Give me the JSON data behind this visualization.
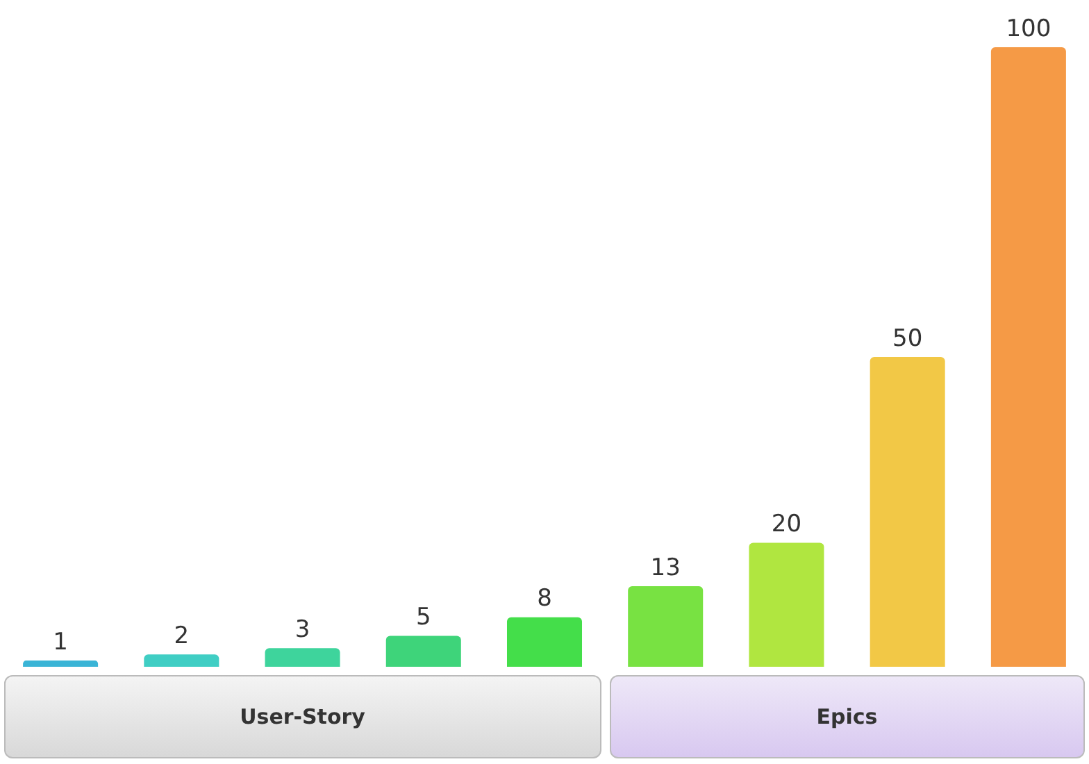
{
  "chart_data": {
    "type": "bar",
    "categories": [
      null,
      null,
      null,
      null,
      null,
      null,
      null,
      null,
      null
    ],
    "values": [
      1,
      2,
      3,
      5,
      8,
      13,
      20,
      50,
      100
    ],
    "colors": [
      "#3ab4d6",
      "#40cec4",
      "#3ed49c",
      "#3ed47a",
      "#44de4a",
      "#78e242",
      "#b0e640",
      "#f2c846",
      "#f59a46"
    ],
    "data_labels": true,
    "legend": false,
    "tick_labels": false,
    "annotations": [
      "User-Story",
      "Epics"
    ]
  }
}
